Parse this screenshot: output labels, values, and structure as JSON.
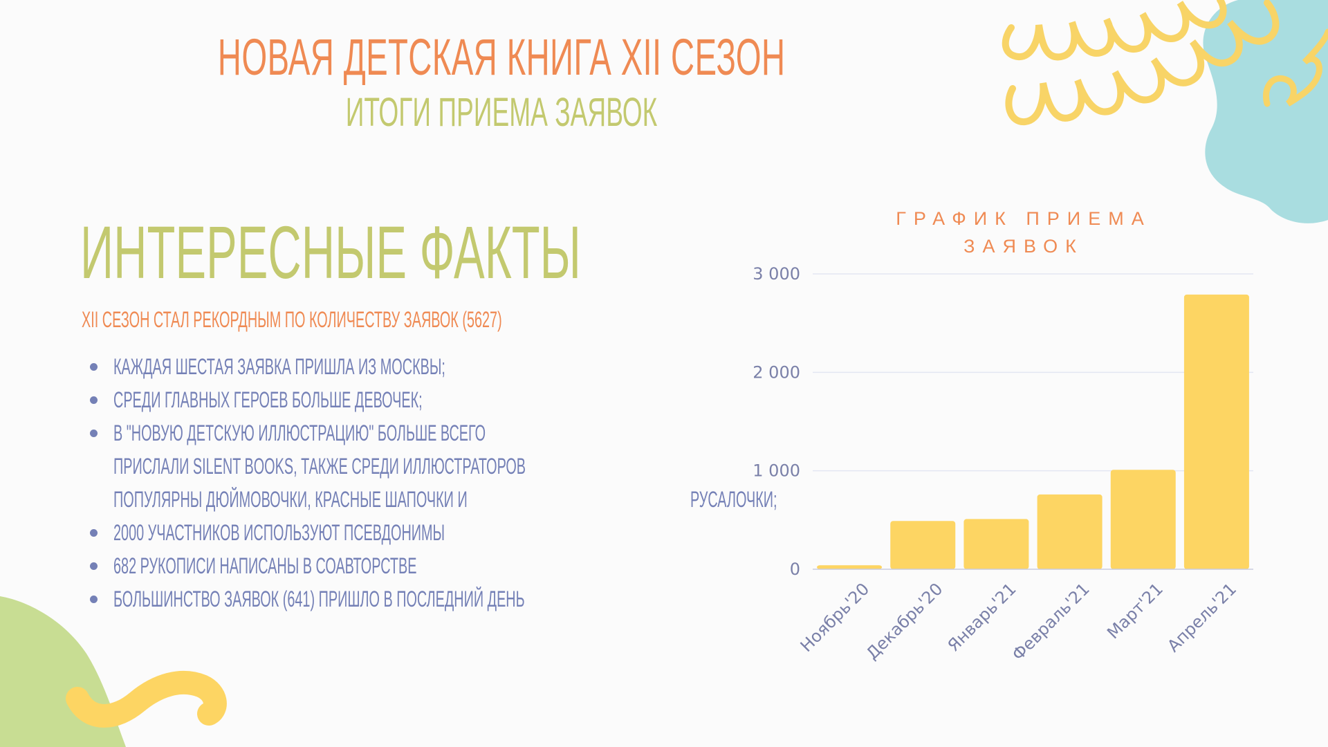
{
  "header": {
    "title": "НОВАЯ ДЕТСКАЯ КНИГА XII СЕЗОН",
    "subtitle": "ИТОГИ ПРИЕМА ЗАЯВОК"
  },
  "facts": {
    "heading": "ИНТЕРЕСНЫЕ ФАКТЫ",
    "record": "XII СЕЗОН СТАЛ РЕКОРДНЫМ ПО КОЛИЧЕСТВУ ЗАЯВОК (5627)",
    "items": [
      [
        "КАЖДАЯ ШЕСТАЯ ЗАЯВКА ПРИШЛА ИЗ МОСКВЫ;"
      ],
      [
        "СРЕДИ ГЛАВНЫХ ГЕРОЕВ БОЛЬШЕ ДЕВОЧЕК;"
      ],
      [
        "В \"НОВУЮ ДЕТСКУЮ ИЛЛЮСТРАЦИЮ\" БОЛЬШЕ ВСЕГО",
        "ПРИСЛАЛИ SILENT BOOKS, ТАКЖЕ СРЕДИ ИЛЛЮСТРАТОРОВ",
        "ПОПУЛЯРНЫ ДЮЙМОВОЧКИ, КРАСНЫЕ ШАПОЧКИ И",
        "РУСАЛОЧКИ;"
      ],
      [
        "2000 УЧАСТНИКОВ ИСПОЛЬЗУЮТ ПСЕВДОНИМЫ"
      ],
      [
        "682 РУКОПИСИ НАПИСАНЫ В СОАВТОРСТВЕ"
      ],
      [
        "БОЛЬШИНСТВО ЗАЯВОК (641) ПРИШЛО В ПОСЛЕДНИЙ ДЕНЬ"
      ]
    ]
  },
  "colors": {
    "bar": "#fdd563",
    "grid": "#e3e6f2",
    "axis_text": "#7a80a8",
    "accent_orange": "#ef8a53",
    "accent_green": "#c3c96f",
    "list_text": "#7480b6"
  },
  "chart_data": {
    "type": "bar",
    "title": "ГРАФИК ПРИЕМА ЗАЯВОК",
    "categories": [
      "Ноябрь'20",
      "Декабрь'20",
      "Январь'21",
      "Февраль'21",
      "Март'21",
      "Апрель'21"
    ],
    "values": [
      40,
      490,
      510,
      760,
      1010,
      2790
    ],
    "yticks": [
      0,
      1000,
      2000,
      3000
    ],
    "ytick_labels": [
      "0",
      "1 000",
      "2 000",
      "3 000"
    ],
    "ylim": [
      0,
      3000
    ],
    "grid": true
  }
}
